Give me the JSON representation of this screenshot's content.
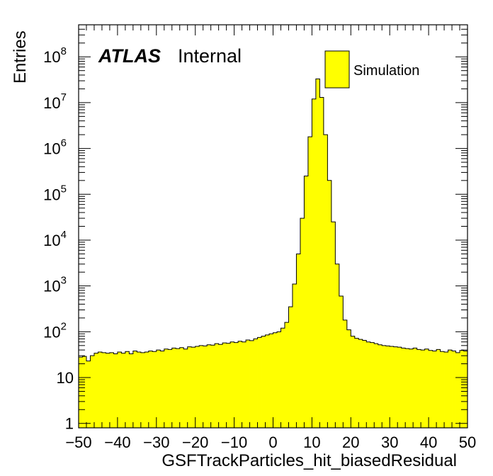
{
  "chart_data": {
    "type": "bar",
    "histogram": true,
    "xlabel": "GSFTrackParticles_hit_biasedResidual",
    "ylabel": "Entries",
    "xlim": [
      -50,
      50
    ],
    "ylim": [
      0.8,
      500000000
    ],
    "ylog": true,
    "x_ticks": [
      "−50",
      "−40",
      "−30",
      "−20",
      "−10",
      "0",
      "10",
      "20",
      "30",
      "40",
      "50"
    ],
    "y_ticks": [
      {
        "base": "1",
        "exp": ""
      },
      {
        "base": "10",
        "exp": ""
      },
      {
        "base": "10",
        "exp": "2"
      },
      {
        "base": "10",
        "exp": "3"
      },
      {
        "base": "10",
        "exp": "4"
      },
      {
        "base": "10",
        "exp": "5"
      },
      {
        "base": "10",
        "exp": "6"
      },
      {
        "base": "10",
        "exp": "7"
      },
      {
        "base": "10",
        "exp": "8"
      }
    ],
    "bin_width": 1,
    "bin_edges_start": -50,
    "fill_color": "#ffff00",
    "line_color": "#000000",
    "legend_position": "top-right",
    "series": [
      {
        "name": "Simulation",
        "values": [
          28,
          29,
          23,
          30,
          34,
          36,
          35,
          34,
          35,
          33,
          36,
          34,
          37,
          33,
          38,
          36,
          35,
          36,
          38,
          37,
          40,
          38,
          42,
          41,
          44,
          43,
          45,
          42,
          47,
          46,
          48,
          50,
          49,
          52,
          51,
          55,
          53,
          57,
          56,
          60,
          58,
          62,
          60,
          66,
          64,
          70,
          75,
          80,
          85,
          90,
          95,
          100,
          120,
          160,
          350,
          1100,
          5000,
          30000,
          250000,
          1800000,
          12000000,
          33000000,
          13000000,
          2000000,
          200000,
          25000,
          3000,
          600,
          180,
          110,
          80,
          72,
          68,
          65,
          60,
          58,
          55,
          52,
          50,
          49,
          48,
          47,
          46,
          44,
          43,
          42,
          44,
          41,
          40,
          42,
          39,
          38,
          41,
          37,
          36,
          40,
          38,
          35,
          39,
          38
        ]
      }
    ]
  },
  "annotation": {
    "experiment": "ATLAS",
    "status": "Internal"
  },
  "legend": {
    "entry_label": "Simulation"
  }
}
